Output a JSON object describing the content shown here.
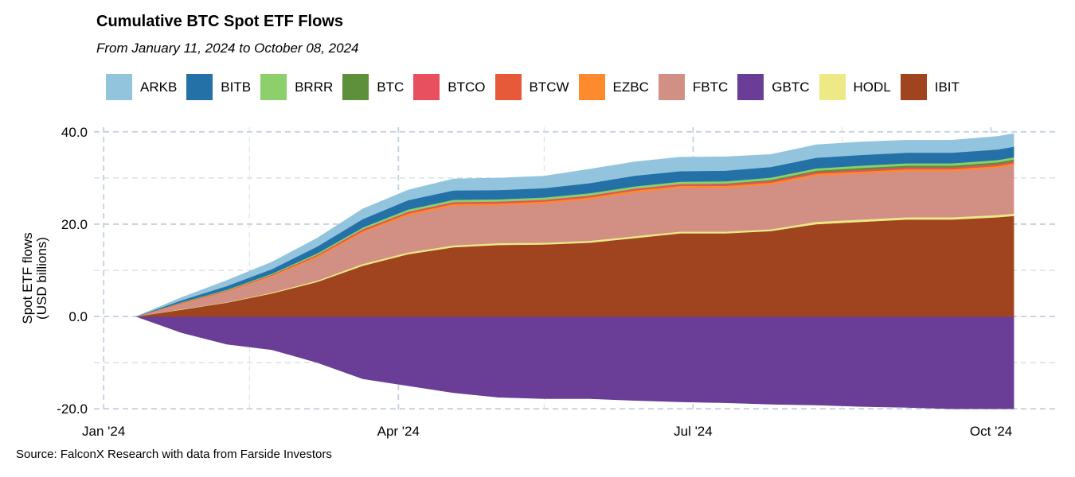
{
  "chart_data": {
    "type": "area",
    "stacked": true,
    "title": "Cumulative BTC Spot ETF Flows",
    "subtitle": "From January 11, 2024 to October 08, 2024",
    "ylabel_line1": "Spot ETF flows",
    "ylabel_line2": "(USD billions)",
    "xlabel": "",
    "source": "Source: FalconX Research with data from Farside Investors",
    "ylim": [
      -21,
      41
    ],
    "xlim": [
      "2023-12-29",
      "2024-10-22"
    ],
    "legend_position": "top",
    "grid": true,
    "y_ticks": [
      {
        "value": 40,
        "label": "40.0"
      },
      {
        "value": 20,
        "label": "20.0"
      },
      {
        "value": 0,
        "label": "0.0"
      },
      {
        "value": -20,
        "label": "-20.0"
      }
    ],
    "x_ticks": [
      {
        "date": "2024-01-01",
        "label": "Jan '24"
      },
      {
        "date": "2024-04-01",
        "label": "Apr '24"
      },
      {
        "date": "2024-07-01",
        "label": "Jul '24"
      },
      {
        "date": "2024-10-01",
        "label": "Oct '24"
      }
    ],
    "x_minor_ticks": [
      "2024-02-15",
      "2024-05-16",
      "2024-08-16"
    ],
    "series_order": [
      "GBTC",
      "IBIT",
      "HODL",
      "FBTC",
      "EZBC",
      "BTCW",
      "BTCO",
      "BTC",
      "BRRR",
      "BITB",
      "ARKB"
    ],
    "legend": [
      "ARKB",
      "BITB",
      "BRRR",
      "BTC",
      "BTCO",
      "BTCW",
      "EZBC",
      "FBTC",
      "GBTC",
      "HODL",
      "IBIT"
    ],
    "colors": {
      "ARKB": "#93c4dd",
      "BITB": "#2371a6",
      "BRRR": "#8ccf6b",
      "BTC": "#5e8f3a",
      "BTCO": "#e8505f",
      "BTCW": "#e65a3a",
      "EZBC": "#fd8a2c",
      "FBTC": "#d29085",
      "GBTC": "#6a3d96",
      "HODL": "#ece986",
      "IBIT": "#a0441f"
    },
    "x": [
      "2024-01-11",
      "2024-01-25",
      "2024-02-08",
      "2024-02-22",
      "2024-03-07",
      "2024-03-21",
      "2024-04-04",
      "2024-04-18",
      "2024-05-02",
      "2024-05-16",
      "2024-05-30",
      "2024-06-13",
      "2024-06-27",
      "2024-07-11",
      "2024-07-25",
      "2024-08-08",
      "2024-08-22",
      "2024-09-05",
      "2024-09-19",
      "2024-10-03",
      "2024-10-08"
    ],
    "series": [
      {
        "name": "GBTC",
        "values": [
          0,
          -3.5,
          -6,
          -7.2,
          -10,
          -13.5,
          -15,
          -16.5,
          -17.5,
          -17.8,
          -17.8,
          -18.2,
          -18.5,
          -18.7,
          -19,
          -19.2,
          -19.5,
          -19.7,
          -20,
          -20,
          -20
        ]
      },
      {
        "name": "IBIT",
        "values": [
          0,
          1.5,
          3,
          5,
          7.5,
          11,
          13.5,
          15,
          15.5,
          15.6,
          16,
          17,
          18,
          18,
          18.5,
          20,
          20.5,
          21,
          21,
          21.5,
          21.8
        ]
      },
      {
        "name": "HODL",
        "values": [
          0,
          0.1,
          0.1,
          0.2,
          0.3,
          0.4,
          0.4,
          0.4,
          0.4,
          0.4,
          0.4,
          0.4,
          0.4,
          0.4,
          0.4,
          0.5,
          0.5,
          0.5,
          0.5,
          0.5,
          0.5
        ]
      },
      {
        "name": "FBTC",
        "values": [
          0,
          1.2,
          2.3,
          3.5,
          5,
          6.8,
          8,
          8.6,
          8.2,
          8.5,
          9,
          9.5,
          9.5,
          9.5,
          9.7,
          10,
          10,
          10,
          10,
          10.2,
          10.5
        ]
      },
      {
        "name": "EZBC",
        "values": [
          0,
          0.1,
          0.1,
          0.2,
          0.3,
          0.3,
          0.4,
          0.4,
          0.4,
          0.4,
          0.4,
          0.4,
          0.4,
          0.4,
          0.4,
          0.4,
          0.4,
          0.4,
          0.4,
          0.4,
          0.4
        ]
      },
      {
        "name": "BTCW",
        "values": [
          0,
          0,
          0.05,
          0.05,
          0.1,
          0.1,
          0.1,
          0.1,
          0.1,
          0.1,
          0.1,
          0.1,
          0.1,
          0.1,
          0.1,
          0.1,
          0.1,
          0.1,
          0.1,
          0.1,
          0.1
        ]
      },
      {
        "name": "BTCO",
        "values": [
          0,
          0.1,
          0.1,
          0.15,
          0.2,
          0.3,
          0.3,
          0.3,
          0.3,
          0.3,
          0.3,
          0.3,
          0.3,
          0.3,
          0.3,
          0.3,
          0.3,
          0.3,
          0.3,
          0.3,
          0.3
        ]
      },
      {
        "name": "BTC",
        "values": [
          0,
          0,
          0,
          0,
          0,
          0,
          0,
          0,
          0,
          0,
          0,
          0,
          0,
          0.1,
          0.2,
          0.3,
          0.4,
          0.4,
          0.4,
          0.4,
          0.4
        ]
      },
      {
        "name": "BRRR",
        "values": [
          0,
          0.1,
          0.15,
          0.2,
          0.3,
          0.4,
          0.5,
          0.5,
          0.5,
          0.5,
          0.5,
          0.5,
          0.5,
          0.5,
          0.5,
          0.5,
          0.5,
          0.5,
          0.5,
          0.5,
          0.5
        ]
      },
      {
        "name": "BITB",
        "values": [
          0,
          0.4,
          0.8,
          1,
          1.5,
          1.8,
          2,
          2,
          2,
          2,
          2.2,
          2.3,
          2.3,
          2.3,
          2.3,
          2.3,
          2.3,
          2.3,
          2.3,
          2.3,
          2.3
        ]
      },
      {
        "name": "ARKB",
        "values": [
          0,
          0.6,
          1.2,
          1.5,
          1.8,
          2.2,
          2.2,
          2.5,
          2.6,
          2.6,
          3,
          3,
          3,
          3,
          2.7,
          2.8,
          2.8,
          2.7,
          2.7,
          2.8,
          2.8
        ]
      }
    ]
  }
}
